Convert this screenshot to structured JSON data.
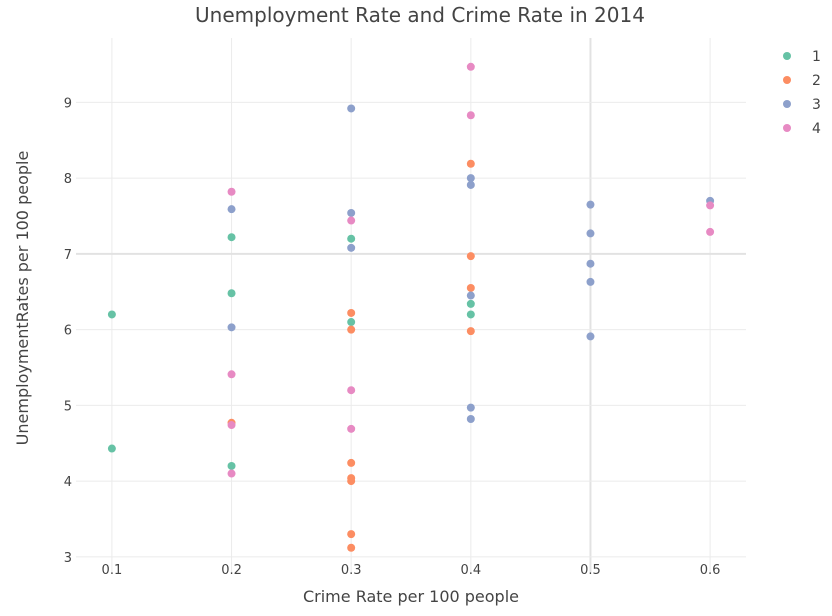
{
  "chart_data": {
    "type": "scatter",
    "title": "Unemployment Rate and Crime Rate in 2014",
    "xlabel": "Crime Rate per 100 people",
    "ylabel": "UnemploymentRates per 100 people",
    "xlim": [
      0.07,
      0.63
    ],
    "ylim": [
      2.8,
      9.85
    ],
    "x_ticks": [
      0.1,
      0.2,
      0.3,
      0.4,
      0.5,
      0.6
    ],
    "x_tick_labels": [
      "0.1",
      "0.2",
      "0.3",
      "0.4",
      "0.5",
      "0.6"
    ],
    "y_ticks": [
      3,
      4,
      5,
      6,
      7,
      8,
      9
    ],
    "y_tick_labels": [
      "3",
      "4",
      "5",
      "6",
      "7",
      "8",
      "9"
    ],
    "grid": true,
    "legend_position": "top-right",
    "series": [
      {
        "name": "1",
        "color": "#66c2a5",
        "points": [
          {
            "x": 0.1,
            "y": 6.2
          },
          {
            "x": 0.1,
            "y": 4.43
          },
          {
            "x": 0.2,
            "y": 7.22
          },
          {
            "x": 0.2,
            "y": 6.48
          },
          {
            "x": 0.2,
            "y": 4.2
          },
          {
            "x": 0.3,
            "y": 7.2
          },
          {
            "x": 0.3,
            "y": 6.1
          },
          {
            "x": 0.4,
            "y": 6.34
          },
          {
            "x": 0.4,
            "y": 6.2
          }
        ]
      },
      {
        "name": "2",
        "color": "#fc8d62",
        "points": [
          {
            "x": 0.2,
            "y": 4.77
          },
          {
            "x": 0.3,
            "y": 6.22
          },
          {
            "x": 0.3,
            "y": 6.0
          },
          {
            "x": 0.3,
            "y": 4.24
          },
          {
            "x": 0.3,
            "y": 4.04
          },
          {
            "x": 0.3,
            "y": 4.0
          },
          {
            "x": 0.3,
            "y": 3.3
          },
          {
            "x": 0.3,
            "y": 3.12
          },
          {
            "x": 0.4,
            "y": 8.19
          },
          {
            "x": 0.4,
            "y": 6.97
          },
          {
            "x": 0.4,
            "y": 6.55
          },
          {
            "x": 0.4,
            "y": 5.98
          }
        ]
      },
      {
        "name": "3",
        "color": "#8da0cb",
        "points": [
          {
            "x": 0.2,
            "y": 7.59
          },
          {
            "x": 0.2,
            "y": 6.03
          },
          {
            "x": 0.3,
            "y": 8.92
          },
          {
            "x": 0.3,
            "y": 7.54
          },
          {
            "x": 0.3,
            "y": 7.08
          },
          {
            "x": 0.4,
            "y": 8.0
          },
          {
            "x": 0.4,
            "y": 7.91
          },
          {
            "x": 0.4,
            "y": 6.45
          },
          {
            "x": 0.4,
            "y": 4.97
          },
          {
            "x": 0.4,
            "y": 4.82
          },
          {
            "x": 0.5,
            "y": 7.65
          },
          {
            "x": 0.5,
            "y": 7.27
          },
          {
            "x": 0.5,
            "y": 6.87
          },
          {
            "x": 0.5,
            "y": 6.63
          },
          {
            "x": 0.5,
            "y": 5.91
          },
          {
            "x": 0.6,
            "y": 7.7
          }
        ]
      },
      {
        "name": "4",
        "color": "#e78ac3",
        "points": [
          {
            "x": 0.2,
            "y": 7.82
          },
          {
            "x": 0.2,
            "y": 5.41
          },
          {
            "x": 0.2,
            "y": 4.74
          },
          {
            "x": 0.2,
            "y": 4.1
          },
          {
            "x": 0.3,
            "y": 7.44
          },
          {
            "x": 0.3,
            "y": 5.2
          },
          {
            "x": 0.3,
            "y": 4.69
          },
          {
            "x": 0.4,
            "y": 9.47
          },
          {
            "x": 0.4,
            "y": 8.83
          },
          {
            "x": 0.6,
            "y": 7.64
          },
          {
            "x": 0.6,
            "y": 7.29
          }
        ]
      }
    ]
  }
}
